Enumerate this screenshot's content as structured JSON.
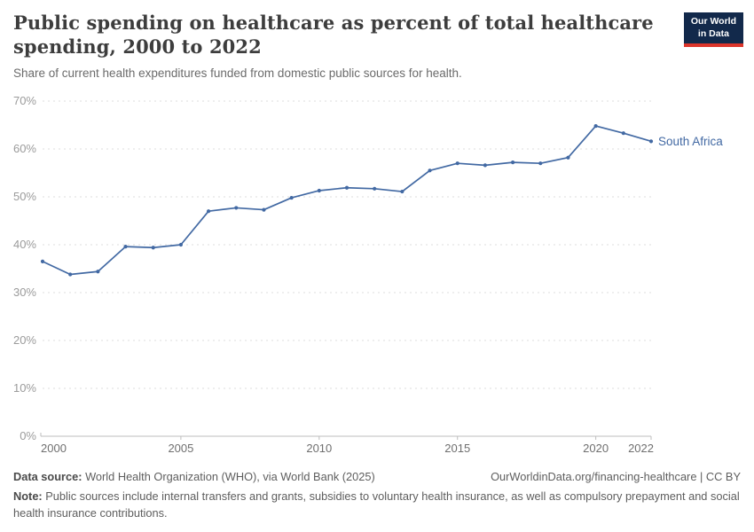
{
  "header": {
    "title": "Public spending on healthcare as percent of total healthcare spending, 2000 to 2022",
    "subtitle": "Share of current health expenditures funded from domestic public sources for health.",
    "logo": {
      "line1": "Our World",
      "line2": "in Data",
      "bg_color": "#12294b",
      "bar_color": "#dc352b"
    }
  },
  "chart_data": {
    "type": "line",
    "title": "Public spending on healthcare as percent of total healthcare spending, 2000 to 2022",
    "xlabel": "",
    "ylabel": "",
    "xlim": [
      2000,
      2022
    ],
    "ylim": [
      0,
      70
    ],
    "yticks": [
      0,
      10,
      20,
      30,
      40,
      50,
      60,
      70
    ],
    "ytick_suffix": "%",
    "xticks": [
      2000,
      2005,
      2010,
      2015,
      2020,
      2022
    ],
    "grid": "horizontal-dashed",
    "legend": "end-of-line-label",
    "series": [
      {
        "name": "South Africa",
        "color": "#4269a3",
        "x": [
          2000,
          2001,
          2002,
          2003,
          2004,
          2005,
          2006,
          2007,
          2008,
          2009,
          2010,
          2011,
          2012,
          2013,
          2014,
          2015,
          2016,
          2017,
          2018,
          2019,
          2020,
          2021,
          2022
        ],
        "values": [
          36.5,
          33.8,
          34.4,
          39.6,
          39.4,
          40.0,
          47.0,
          47.7,
          47.3,
          49.8,
          51.3,
          51.9,
          51.7,
          51.1,
          55.5,
          57.0,
          56.6,
          57.2,
          57.0,
          58.2,
          64.8,
          63.3,
          61.6
        ]
      }
    ]
  },
  "footer": {
    "source_label": "Data source:",
    "source_value": " World Health Organization (WHO), via World Bank (2025)",
    "citation": "OurWorldinData.org/financing-healthcare | CC BY",
    "note_label": "Note:",
    "note_value": " Public sources include internal transfers and grants, subsidies to voluntary health insurance, as well as compulsory prepayment and social health insurance contributions."
  }
}
